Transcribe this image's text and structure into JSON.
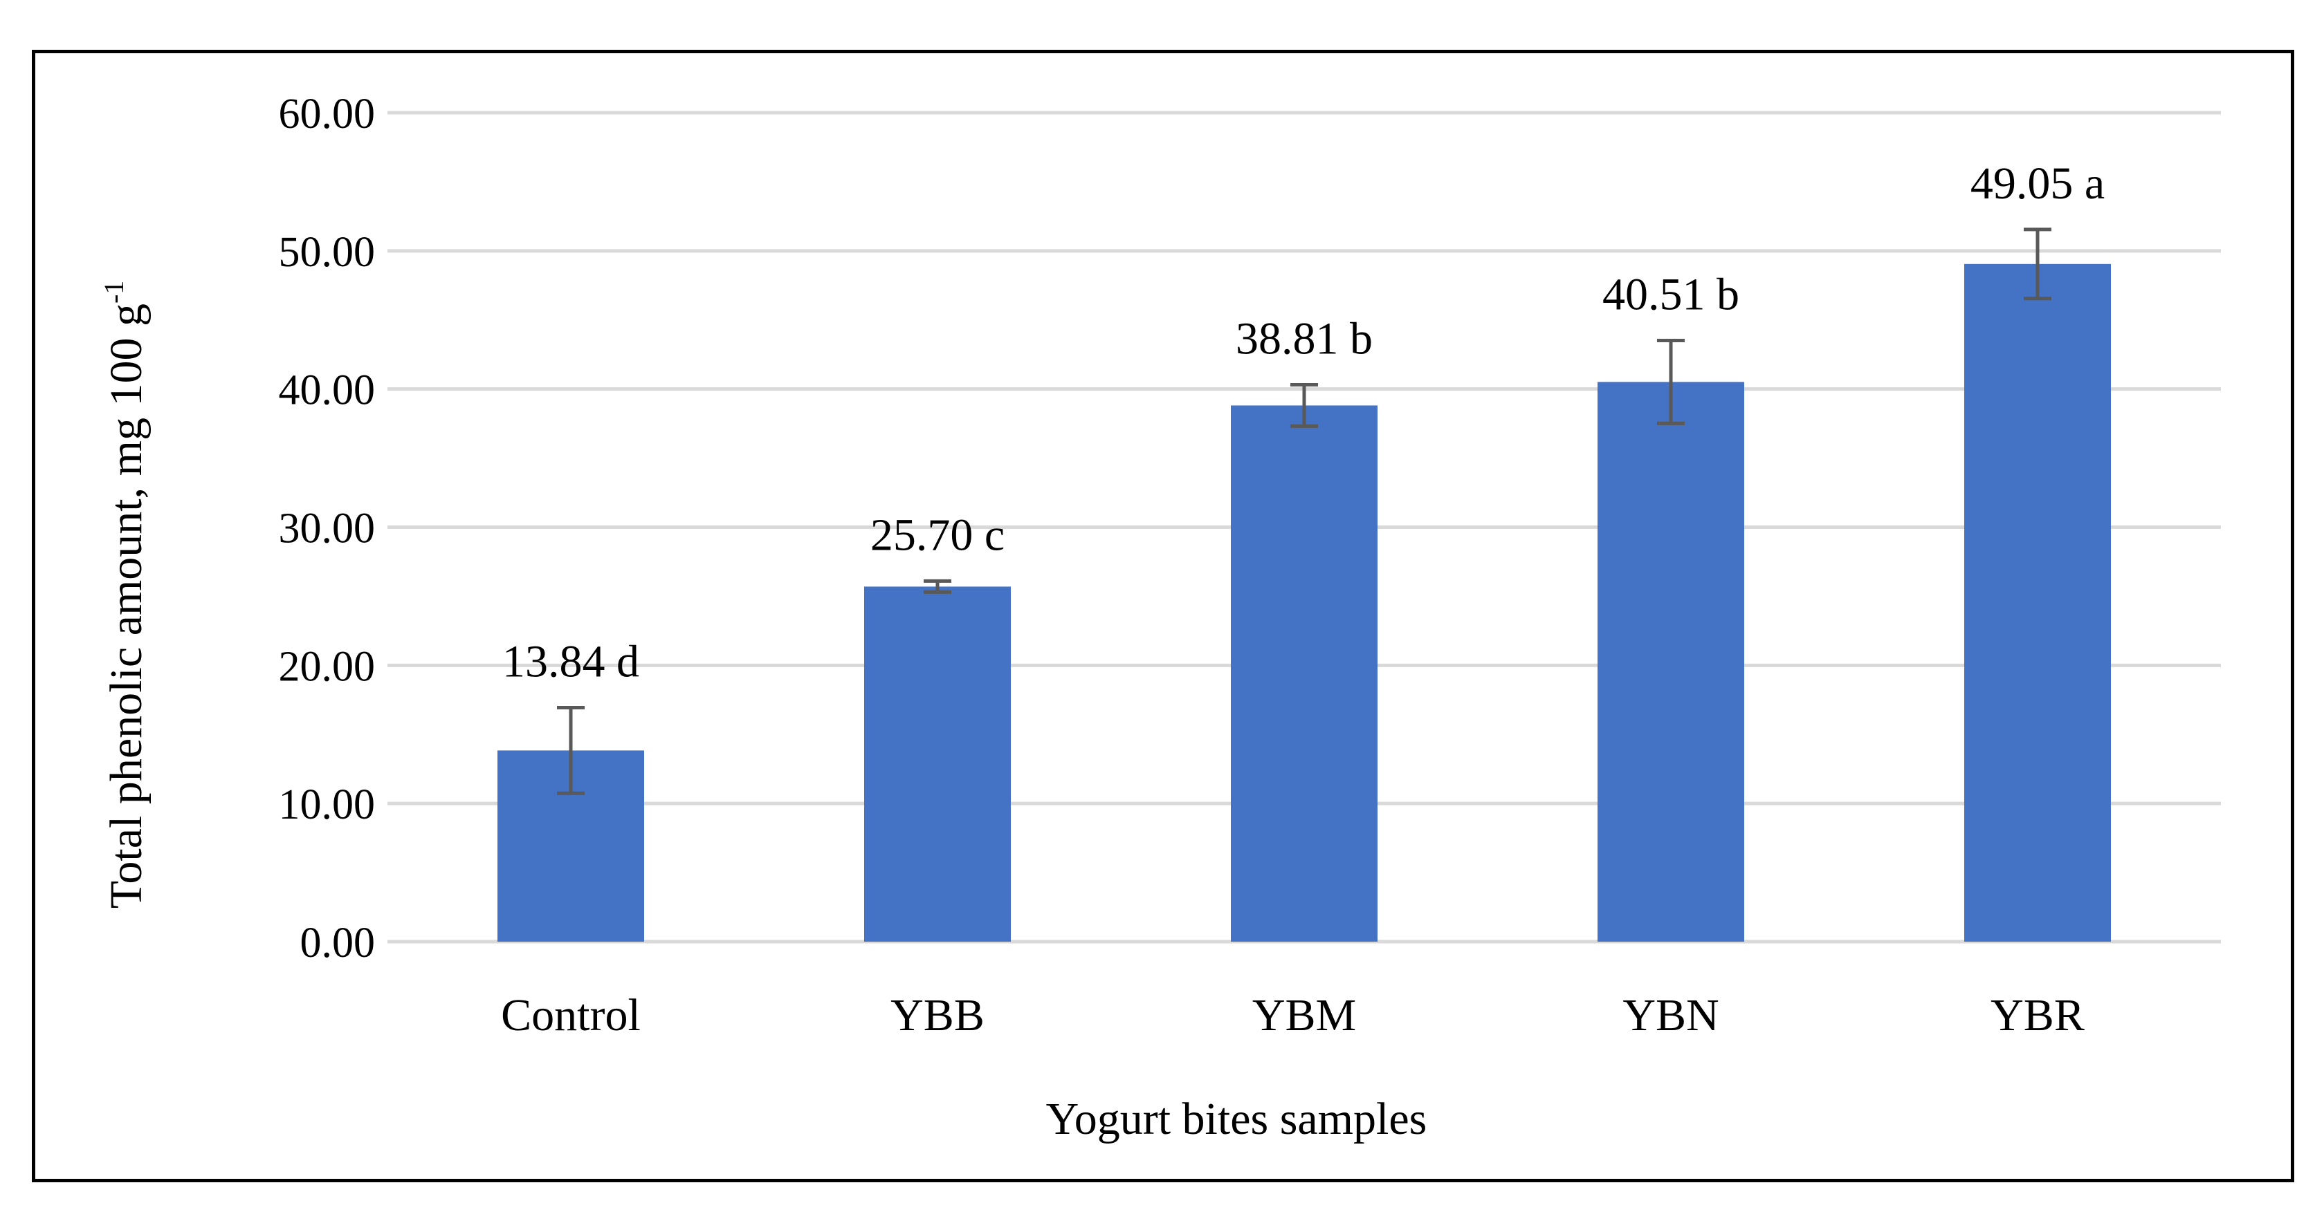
{
  "chart_data": {
    "type": "bar",
    "title": "",
    "xlabel": "Yogurt bites samples",
    "ylabel": "Total phenolic amount,  mg 100 g",
    "ylabel_superscript": "-1",
    "categories": [
      "Control",
      "YBB",
      "YBM",
      "YBN",
      "YBR"
    ],
    "values": [
      13.84,
      25.7,
      38.81,
      40.51,
      49.05
    ],
    "errors": [
      3.1,
      0.4,
      1.5,
      3.0,
      2.5
    ],
    "data_labels": [
      "13.84 d",
      "25.70 c",
      "38.81 b",
      "40.51 b",
      "49.05 a"
    ],
    "ylim": [
      0,
      60
    ],
    "yticks": [
      0,
      10,
      20,
      30,
      40,
      50,
      60
    ],
    "ytick_labels": [
      "0.00",
      "10.00",
      "20.00",
      "30.00",
      "40.00",
      "50.00",
      "60.00"
    ],
    "grid": true,
    "legend": "none",
    "colors": {
      "bar": "#4472C4",
      "error_bar": "#595959",
      "grid": "#D9D9D9",
      "text": "#000000"
    }
  }
}
